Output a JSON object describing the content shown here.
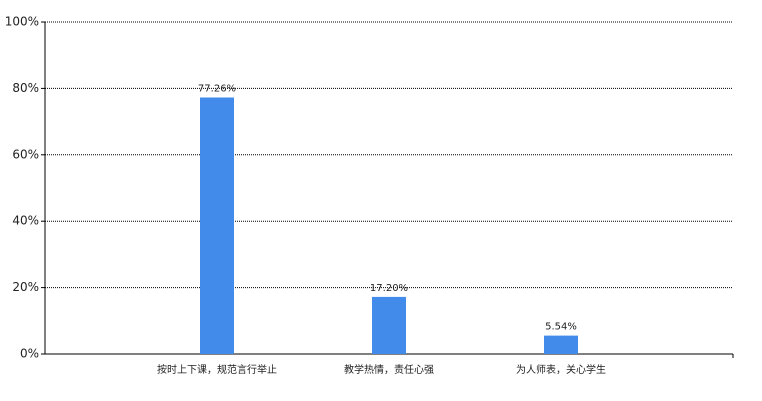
{
  "chart_data": {
    "type": "bar",
    "categories": [
      "按时上下课，规范言行举止",
      "教学热情，责任心强",
      "为人师表，关心学生"
    ],
    "values": [
      77.26,
      17.2,
      5.54
    ],
    "value_labels": [
      "77.26%",
      "17.20%",
      "5.54%"
    ],
    "color": "#428bea",
    "ylim": [
      0,
      100
    ],
    "yticks": [
      {
        "value": 0,
        "label": "0%"
      },
      {
        "value": 20,
        "label": "20%"
      },
      {
        "value": 40,
        "label": "40%"
      },
      {
        "value": 60,
        "label": "60%"
      },
      {
        "value": 80,
        "label": "80%"
      },
      {
        "value": 100,
        "label": "100%"
      }
    ],
    "grid": true
  }
}
